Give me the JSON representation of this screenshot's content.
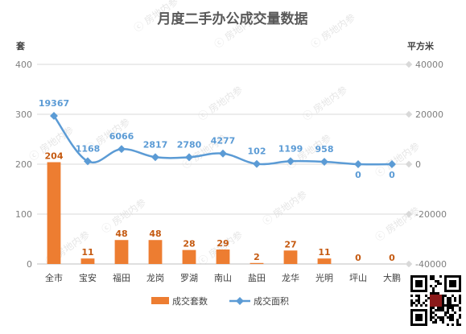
{
  "chart_data": {
    "type": "bar+line",
    "title": "月度二手办公成交量数据",
    "categories": [
      "全市",
      "宝安",
      "福田",
      "龙岗",
      "罗湖",
      "南山",
      "盐田",
      "龙华",
      "光明",
      "坪山",
      "大鹏"
    ],
    "series": [
      {
        "name": "成交套数",
        "type": "bar",
        "axis": "left",
        "color": "#ed7d31",
        "values": [
          204,
          11,
          48,
          48,
          28,
          29,
          2,
          27,
          11,
          0,
          0
        ]
      },
      {
        "name": "成交面积",
        "type": "line",
        "axis": "right",
        "color": "#5b9bd5",
        "values": [
          19367,
          1168,
          6066,
          2817,
          2780,
          4277,
          102,
          1199,
          958,
          0,
          0
        ]
      }
    ],
    "y_left": {
      "unit": "套",
      "ylim": [
        0,
        400
      ],
      "ticks": [
        0,
        100,
        200,
        300,
        400
      ]
    },
    "y_right": {
      "unit": "平方米",
      "ylim": [
        -40000,
        40000
      ],
      "ticks": [
        -40000,
        -20000,
        0,
        20000,
        40000
      ]
    },
    "grid": true,
    "legend_position": "bottom"
  },
  "watermark": "房地内参"
}
